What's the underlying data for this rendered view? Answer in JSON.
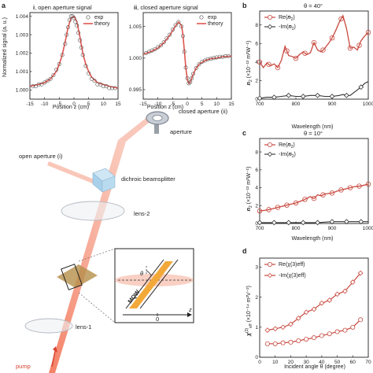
{
  "panel_labels": {
    "a": "a",
    "b": "b",
    "c": "c",
    "d": "d"
  },
  "setup": {
    "closed_aperture": "closed aperture (ii)",
    "aperture": "aperture",
    "open_aperture": "open aperture (i)",
    "beamsplitter": "dichroic beamsplitter",
    "lens2": "lens-2",
    "lens1": "lens-1",
    "pump": "pump",
    "inset_theta": "θ",
    "inset_mqw": "MQW",
    "inset_zero": "0",
    "inset_z": "z"
  },
  "colors": {
    "exp": "#8a8a8a",
    "theory": "#e0554f",
    "re": "#c8493f",
    "im": "#333333",
    "beam": "#f08060",
    "sample": "#c49a50"
  },
  "chart_data": [
    {
      "id": "ai",
      "type": "scatter",
      "title_prefix": "i",
      "title_text": ", open aperture signal",
      "xlabel": "Position z (cm)",
      "ylabel": "Normalized signal (a. u.)",
      "xlim": [
        -15,
        15
      ],
      "ylim": [
        0.9995,
        1.0042
      ],
      "xticks": [
        "-15",
        "-10",
        "-5",
        "0",
        "5",
        "10",
        "15"
      ],
      "xtick_vals": [
        -15,
        -10,
        -5,
        0,
        5,
        10,
        15
      ],
      "yticks": [
        "1.000",
        "1.001",
        "1.002",
        "1.003",
        "1.004"
      ],
      "ytick_vals": [
        1.0,
        1.001,
        1.002,
        1.003,
        1.004
      ],
      "legend": [
        "exp",
        "theory"
      ],
      "series": [
        {
          "name": "exp",
          "x": [
            -14,
            -13,
            -12,
            -11,
            -10,
            -9,
            -8,
            -7,
            -6,
            -5,
            -4,
            -3,
            -2.5,
            -2,
            -1.5,
            -1,
            -0.5,
            0,
            0.5,
            1,
            1.5,
            2,
            2.5,
            3,
            4,
            5,
            6,
            7,
            8,
            9,
            10,
            11,
            12,
            13,
            14
          ],
          "y": [
            1.0002,
            1.0002,
            1.0003,
            1.0003,
            1.0004,
            1.0005,
            1.0006,
            1.0008,
            1.0011,
            1.0014,
            1.0019,
            1.0025,
            1.003,
            1.0034,
            1.0038,
            1.004,
            1.004,
            1.0039,
            1.0037,
            1.0035,
            1.0031,
            1.0027,
            1.0023,
            1.0019,
            1.0013,
            1.0009,
            1.0006,
            1.0005,
            1.0003,
            1.0003,
            1.0002,
            1.0002,
            1.0001,
            1.0001,
            1.0001
          ]
        },
        {
          "name": "theory",
          "x": [
            -15,
            -12,
            -10,
            -8,
            -6,
            -5,
            -4,
            -3,
            -2,
            -1,
            0,
            1,
            2,
            3,
            4,
            5,
            6,
            8,
            10,
            12,
            15
          ],
          "y": [
            1.0002,
            1.0003,
            1.0004,
            1.0006,
            1.001,
            1.0014,
            1.0019,
            1.0026,
            1.0034,
            1.0039,
            1.004,
            1.0037,
            1.0029,
            1.002,
            1.0014,
            1.001,
            1.0007,
            1.0004,
            1.0003,
            1.0002,
            1.0001
          ]
        }
      ]
    },
    {
      "id": "aii",
      "type": "scatter",
      "title_prefix": "ii",
      "title_text": ", closed aperture signal",
      "xlabel": "Position z (cm)",
      "ylabel": "",
      "xlim": [
        -15,
        15
      ],
      "ylim": [
        0.9935,
        1.0072
      ],
      "xticks": [
        "-15",
        "-10",
        "-5",
        "0",
        "5",
        "10",
        "15"
      ],
      "xtick_vals": [
        -15,
        -10,
        -5,
        0,
        5,
        10,
        15
      ],
      "yticks": [
        "0.995",
        "1.000",
        "1.005"
      ],
      "ytick_vals": [
        0.995,
        1.0,
        1.005
      ],
      "legend": [
        "exp",
        "theory"
      ],
      "series": [
        {
          "name": "exp",
          "x": [
            -14,
            -13,
            -12,
            -11,
            -10,
            -9,
            -8,
            -7,
            -6,
            -5,
            -4,
            -3,
            -2,
            -1.5,
            -1,
            -0.5,
            0,
            0.5,
            1,
            1.5,
            2,
            3,
            4,
            5,
            6,
            7,
            8,
            9,
            10,
            11,
            12,
            13,
            14
          ],
          "y": [
            1.0008,
            1.001,
            1.0012,
            1.0014,
            1.0017,
            1.002,
            1.0025,
            1.0031,
            1.0037,
            1.0045,
            1.0052,
            1.0057,
            1.005,
            1.0035,
            1.001,
            0.9985,
            0.9968,
            0.996,
            0.9962,
            0.9968,
            0.9975,
            0.9984,
            0.999,
            0.9994,
            0.9996,
            0.9998,
            0.9999,
            1.0,
            1.0001,
            1.0002,
            1.0002,
            1.0003,
            1.0003
          ]
        },
        {
          "name": "theory",
          "x": [
            -15,
            -12,
            -10,
            -8,
            -6,
            -4,
            -3,
            -2,
            -1.5,
            -1,
            -0.5,
            0,
            0.5,
            1,
            2,
            3,
            4,
            6,
            8,
            10,
            12,
            15
          ],
          "y": [
            1.0006,
            1.0011,
            1.0016,
            1.0024,
            1.0036,
            1.0051,
            1.0057,
            1.0052,
            1.0038,
            1.0012,
            0.9985,
            0.9966,
            0.996,
            0.9962,
            0.9974,
            0.9984,
            0.999,
            0.9996,
            0.9999,
            1.0,
            1.0002,
            1.0003
          ]
        }
      ]
    },
    {
      "id": "b",
      "type": "line",
      "title": "θ = 40°",
      "xlabel": "Wavelength (nm)",
      "ylabel_main": "n",
      "ylabel_sub": "2",
      "ylabel_unit": " (×10⁻¹³ m²W⁻¹)",
      "xlim": [
        700,
        1000
      ],
      "ylim": [
        0,
        9.5
      ],
      "xticks": [
        "700",
        "800",
        "900",
        "1000"
      ],
      "xtick_vals": [
        700,
        800,
        900,
        1000
      ],
      "yticks": [
        "0",
        "2",
        "4",
        "6",
        "8"
      ],
      "ytick_vals": [
        0,
        2,
        4,
        6,
        8
      ],
      "legend": [
        "Re(n2)",
        "-Im(n2)"
      ],
      "legend_html": [
        {
          "a": "Re(",
          "b": "n",
          "c": "2",
          "d": ")"
        },
        {
          "a": "-Im(",
          "b": "n",
          "c": "2",
          "d": ")"
        }
      ],
      "series": [
        {
          "name": "Re(n2)",
          "x": [
            700,
            710,
            720,
            730,
            740,
            750,
            760,
            770,
            780,
            790,
            800,
            810,
            820,
            830,
            840,
            850,
            860,
            870,
            880,
            890,
            900,
            910,
            920,
            930,
            940,
            950,
            960,
            970,
            980,
            990,
            1000
          ],
          "y": [
            4.0,
            3.4,
            3.9,
            3.6,
            3.8,
            3.4,
            4.2,
            5.7,
            4.7,
            4.6,
            4.4,
            4.8,
            5.1,
            4.8,
            5.0,
            6.1,
            5.3,
            5.1,
            5.5,
            6.0,
            6.6,
            7.4,
            8.3,
            9.0,
            7.6,
            5.5,
            5.6,
            5.3,
            6.3,
            6.8,
            7.2
          ],
          "markers_x": [
            700,
            725,
            750,
            775,
            800,
            825,
            850,
            875,
            900,
            925,
            950,
            975,
            1000
          ]
        },
        {
          "name": "-Im(n2)",
          "x": [
            700,
            720,
            740,
            760,
            780,
            800,
            820,
            840,
            860,
            880,
            900,
            920,
            930,
            940,
            950,
            960,
            970,
            980,
            990,
            1000
          ],
          "y": [
            0.1,
            0.2,
            0.2,
            0.3,
            0.4,
            0.3,
            0.3,
            0.4,
            0.4,
            0.3,
            0.3,
            0.4,
            0.5,
            0.4,
            0.4,
            0.7,
            1.0,
            1.3,
            1.7,
            1.9
          ],
          "markers_x": [
            700,
            740,
            780,
            820,
            860,
            900,
            940,
            980
          ]
        }
      ]
    },
    {
      "id": "c",
      "type": "line",
      "title": "θ = 10°",
      "xlabel": "Wavelength (nm)",
      "ylabel_main": "n",
      "ylabel_sub": "2",
      "ylabel_unit": " (×10⁻¹³ m²W⁻¹)",
      "xlim": [
        700,
        1000
      ],
      "ylim": [
        0,
        9.5
      ],
      "xticks": [
        "700",
        "800",
        "900",
        "1000"
      ],
      "xtick_vals": [
        700,
        800,
        900,
        1000
      ],
      "yticks": [
        "0",
        "2",
        "4",
        "6",
        "8"
      ],
      "ytick_vals": [
        0,
        2,
        4,
        6,
        8
      ],
      "legend": [
        "Re(n2)",
        "-Im(n2)"
      ],
      "legend_html": [
        {
          "a": "Re(",
          "b": "n",
          "c": "2",
          "d": ")"
        },
        {
          "a": "-Im(",
          "b": "n",
          "c": "2",
          "d": ")"
        }
      ],
      "series": [
        {
          "name": "Re(n2)",
          "x": [
            700,
            720,
            740,
            760,
            780,
            800,
            820,
            840,
            850,
            860,
            870,
            880,
            900,
            920,
            940,
            960,
            980,
            1000
          ],
          "y": [
            1.4,
            1.5,
            1.7,
            1.9,
            2.1,
            2.3,
            2.6,
            3.0,
            2.8,
            3.2,
            3.1,
            3.3,
            3.4,
            3.7,
            3.9,
            4.1,
            4.2,
            4.4
          ],
          "markers_x": [
            700,
            725,
            750,
            775,
            800,
            825,
            850,
            875,
            900,
            925,
            950,
            975,
            1000
          ]
        },
        {
          "name": "-Im(n2)",
          "x": [
            700,
            740,
            780,
            820,
            860,
            900,
            940,
            980,
            1000
          ],
          "y": [
            0.1,
            0.1,
            0.1,
            0.1,
            0.1,
            0.2,
            0.2,
            0.2,
            0.2
          ],
          "markers_x": [
            700,
            740,
            780,
            820,
            860,
            900,
            940,
            980
          ]
        }
      ]
    },
    {
      "id": "d",
      "type": "line",
      "title": "",
      "xlabel": "Incident angle θ (degree)",
      "ylabel_main": "χ",
      "ylabel_sup": "(3)",
      "ylabel_sub": "eff",
      "ylabel_unit": " (×10⁻¹⁴ m²V⁻²)",
      "xlim": [
        0,
        70
      ],
      "ylim": [
        0,
        3.3
      ],
      "xticks": [
        "0",
        "10",
        "20",
        "30",
        "40",
        "50",
        "60",
        "70"
      ],
      "xtick_vals": [
        0,
        10,
        20,
        30,
        40,
        50,
        60,
        70
      ],
      "yticks": [
        "0",
        "1",
        "2",
        "3"
      ],
      "ytick_vals": [
        0,
        1,
        2,
        3
      ],
      "legend": [
        "Re(χ(3)eff)",
        "-Im(χ(3)eff)"
      ],
      "series": [
        {
          "name": "Re(χ(3)eff)",
          "x": [
            5,
            10,
            15,
            20,
            25,
            30,
            35,
            40,
            45,
            50,
            55,
            60,
            65
          ],
          "y": [
            0.9,
            0.95,
            1.0,
            1.1,
            1.3,
            1.5,
            1.6,
            1.8,
            1.9,
            2.1,
            2.2,
            2.5,
            2.8
          ]
        },
        {
          "name": "-Im(χ(3)eff)",
          "x": [
            5,
            10,
            15,
            20,
            25,
            30,
            35,
            40,
            45,
            50,
            55,
            60,
            65
          ],
          "y": [
            0.45,
            0.45,
            0.48,
            0.5,
            0.55,
            0.6,
            0.65,
            0.72,
            0.78,
            0.85,
            0.9,
            1.0,
            1.25
          ]
        }
      ]
    }
  ]
}
